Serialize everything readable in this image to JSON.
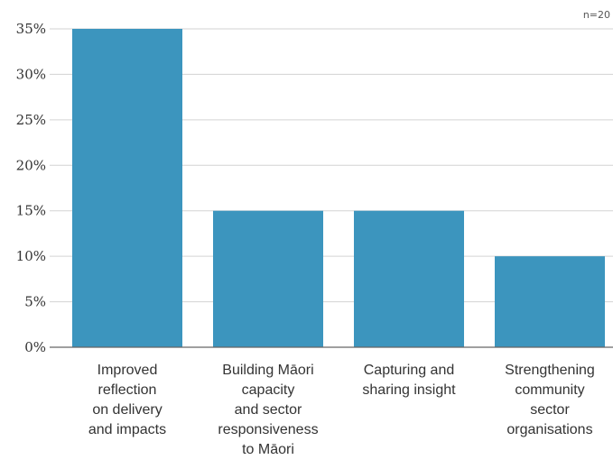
{
  "note": "n=20",
  "colors": {
    "bar": "#3C95BE",
    "grid": "#D3D3D3",
    "axis": "#666666"
  },
  "chart_data": {
    "type": "bar",
    "categories": [
      [
        "Improved",
        "reflection",
        "on delivery",
        "and impacts"
      ],
      [
        "Building Māori",
        "capacity",
        "and sector",
        "responsiveness",
        "to Māori"
      ],
      [
        "Capturing and",
        "sharing insight"
      ],
      [
        "Strengthening",
        "community",
        "sector",
        "organisations"
      ]
    ],
    "values": [
      35,
      15,
      15,
      10
    ],
    "ylim": [
      0,
      35
    ],
    "yticks": [
      "0%",
      "5%",
      "10%",
      "15%",
      "20%",
      "25%",
      "30%",
      "35%"
    ],
    "grid": true,
    "title": "",
    "xlabel": "",
    "ylabel": ""
  }
}
